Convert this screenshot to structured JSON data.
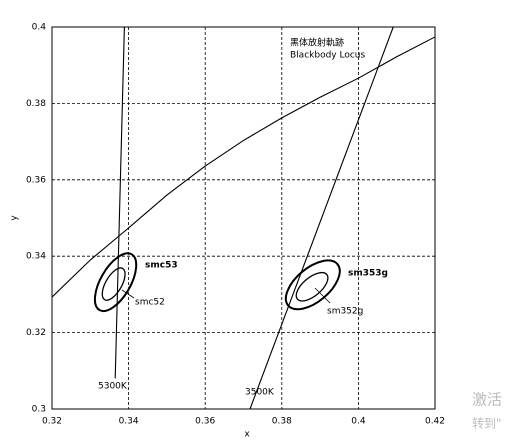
{
  "chart_data": {
    "type": "line",
    "xlabel": "x",
    "ylabel": "y",
    "xlim": [
      0.32,
      0.42
    ],
    "ylim": [
      0.3,
      0.4
    ],
    "xticks": [
      0.32,
      0.34,
      0.36,
      0.38,
      0.4,
      0.42
    ],
    "yticks": [
      0.3,
      0.32,
      0.34,
      0.36,
      0.38,
      0.4
    ],
    "grid": true,
    "series": [
      {
        "name": "Blackbody Locus",
        "color": "#000000",
        "x": [
          0.32,
          0.33,
          0.34,
          0.35,
          0.36,
          0.37,
          0.38,
          0.39,
          0.4,
          0.41,
          0.42
        ],
        "values": [
          0.3293,
          0.339,
          0.3474,
          0.356,
          0.3636,
          0.3703,
          0.3762,
          0.3816,
          0.3866,
          0.3922,
          0.3974
        ]
      },
      {
        "name": "5300K",
        "color": "#000000",
        "x": [
          0.3389,
          0.3365
        ],
        "values": [
          0.4,
          0.308
        ]
      },
      {
        "name": "3500K",
        "color": "#000000",
        "x": [
          0.4091,
          0.3717
        ],
        "values": [
          0.4,
          0.3
        ]
      }
    ],
    "ellipses": [
      {
        "name": "smc53",
        "cx": 0.3366,
        "cy": 0.3332,
        "rx": 0.0084,
        "ry": 0.0039,
        "angle": 60
      },
      {
        "name": "smc52",
        "cx": 0.3361,
        "cy": 0.3327,
        "rx": 0.0047,
        "ry": 0.0021,
        "angle": 60
      },
      {
        "name": "sm353g",
        "cx": 0.3881,
        "cy": 0.3325,
        "rx": 0.0084,
        "ry": 0.0044,
        "angle": 40
      },
      {
        "name": "sm352g",
        "cx": 0.3879,
        "cy": 0.332,
        "rx": 0.005,
        "ry": 0.0024,
        "angle": 40
      }
    ],
    "locus_label_cn": "黑体放射軌跡",
    "watermark": [
      "激活",
      "转到\""
    ]
  }
}
